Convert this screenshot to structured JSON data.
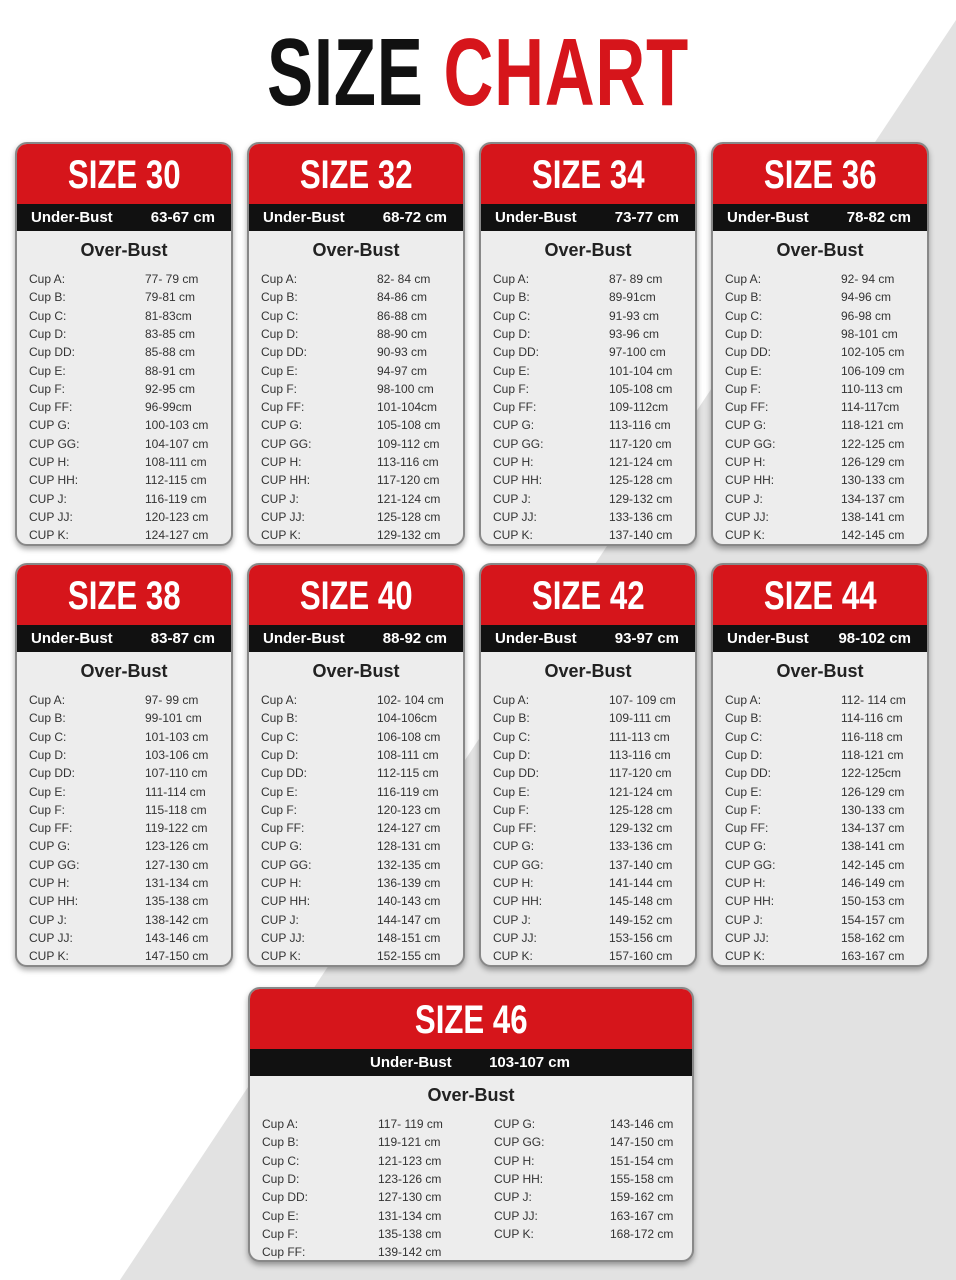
{
  "title": {
    "part1": "SIZE",
    "part2": "CHART"
  },
  "cards": [
    {
      "size": "SIZE 30",
      "under_bust_label": "Under-Bust",
      "under_bust": "63-67 cm",
      "over_bust_label": "Over-Bust",
      "rows": [
        [
          "Cup A:",
          "77- 79 cm"
        ],
        [
          "Cup B:",
          "79-81 cm"
        ],
        [
          "Cup C:",
          "81-83cm"
        ],
        [
          "Cup D:",
          "83-85 cm"
        ],
        [
          "Cup DD:",
          "85-88 cm"
        ],
        [
          "Cup E:",
          "88-91 cm"
        ],
        [
          "Cup F:",
          "92-95 cm"
        ],
        [
          "Cup FF:",
          "96-99cm"
        ],
        [
          "CUP G:",
          "100-103 cm"
        ],
        [
          "CUP GG:",
          "104-107 cm"
        ],
        [
          "CUP H:",
          "108-111 cm"
        ],
        [
          "CUP HH:",
          "112-115 cm"
        ],
        [
          "CUP J:",
          "116-119 cm"
        ],
        [
          "CUP JJ:",
          "120-123 cm"
        ],
        [
          "CUP K:",
          "124-127 cm"
        ]
      ]
    },
    {
      "size": "SIZE 32",
      "under_bust_label": "Under-Bust",
      "under_bust": "68-72 cm",
      "over_bust_label": "Over-Bust",
      "rows": [
        [
          "Cup A:",
          "82- 84 cm"
        ],
        [
          "Cup B:",
          "84-86 cm"
        ],
        [
          "Cup C:",
          "86-88 cm"
        ],
        [
          "Cup D:",
          "88-90 cm"
        ],
        [
          "Cup DD:",
          "90-93 cm"
        ],
        [
          "Cup E:",
          "94-97 cm"
        ],
        [
          "Cup F:",
          "98-100 cm"
        ],
        [
          "Cup FF:",
          "101-104cm"
        ],
        [
          "CUP G:",
          "105-108 cm"
        ],
        [
          "CUP GG:",
          "109-112 cm"
        ],
        [
          "CUP H:",
          "113-116 cm"
        ],
        [
          "CUP HH:",
          "117-120 cm"
        ],
        [
          "CUP J:",
          "121-124 cm"
        ],
        [
          "CUP JJ:",
          "125-128 cm"
        ],
        [
          "CUP K:",
          "129-132 cm"
        ]
      ]
    },
    {
      "size": "SIZE 34",
      "under_bust_label": "Under-Bust",
      "under_bust": "73-77 cm",
      "over_bust_label": "Over-Bust",
      "rows": [
        [
          "Cup A:",
          "87- 89 cm"
        ],
        [
          "Cup B:",
          "89-91cm"
        ],
        [
          "Cup C:",
          "91-93 cm"
        ],
        [
          "Cup D:",
          "93-96 cm"
        ],
        [
          "Cup DD:",
          "97-100 cm"
        ],
        [
          "Cup E:",
          "101-104 cm"
        ],
        [
          "Cup F:",
          "105-108 cm"
        ],
        [
          "Cup FF:",
          "109-112cm"
        ],
        [
          "CUP G:",
          "113-116 cm"
        ],
        [
          "CUP GG:",
          "117-120 cm"
        ],
        [
          "CUP H:",
          "121-124 cm"
        ],
        [
          "CUP HH:",
          "125-128 cm"
        ],
        [
          "CUP J:",
          "129-132 cm"
        ],
        [
          "CUP JJ:",
          "133-136 cm"
        ],
        [
          "CUP K:",
          "137-140 cm"
        ]
      ]
    },
    {
      "size": "SIZE 36",
      "under_bust_label": "Under-Bust",
      "under_bust": "78-82 cm",
      "over_bust_label": "Over-Bust",
      "rows": [
        [
          "Cup A:",
          "92- 94 cm"
        ],
        [
          "Cup B:",
          "94-96 cm"
        ],
        [
          "Cup C:",
          "96-98 cm"
        ],
        [
          "Cup D:",
          "98-101 cm"
        ],
        [
          "Cup DD:",
          "102-105 cm"
        ],
        [
          "Cup E:",
          "106-109 cm"
        ],
        [
          "Cup F:",
          "110-113 cm"
        ],
        [
          "Cup FF:",
          "114-117cm"
        ],
        [
          "CUP G:",
          "118-121 cm"
        ],
        [
          "CUP GG:",
          "122-125 cm"
        ],
        [
          "CUP H:",
          "126-129 cm"
        ],
        [
          "CUP HH:",
          "130-133 cm"
        ],
        [
          "CUP J:",
          "134-137 cm"
        ],
        [
          "CUP JJ:",
          "138-141 cm"
        ],
        [
          "CUP K:",
          "142-145 cm"
        ]
      ]
    },
    {
      "size": "SIZE 38",
      "under_bust_label": "Under-Bust",
      "under_bust": "83-87 cm",
      "over_bust_label": "Over-Bust",
      "rows": [
        [
          "Cup A:",
          "97- 99 cm"
        ],
        [
          "Cup B:",
          "99-101 cm"
        ],
        [
          "Cup C:",
          "101-103 cm"
        ],
        [
          "Cup D:",
          "103-106 cm"
        ],
        [
          "Cup DD:",
          "107-110 cm"
        ],
        [
          "Cup E:",
          "111-114 cm"
        ],
        [
          "Cup F:",
          "115-118 cm"
        ],
        [
          "Cup FF:",
          "119-122 cm"
        ],
        [
          "CUP G:",
          "123-126 cm"
        ],
        [
          "CUP GG:",
          "127-130 cm"
        ],
        [
          "CUP H:",
          "131-134 cm"
        ],
        [
          "CUP HH:",
          "135-138 cm"
        ],
        [
          "CUP J:",
          "138-142 cm"
        ],
        [
          "CUP JJ:",
          "143-146 cm"
        ],
        [
          "CUP K:",
          "147-150 cm"
        ]
      ]
    },
    {
      "size": "SIZE 40",
      "under_bust_label": "Under-Bust",
      "under_bust": "88-92 cm",
      "over_bust_label": "Over-Bust",
      "rows": [
        [
          "Cup A:",
          "102- 104 cm"
        ],
        [
          "Cup B:",
          "104-106cm"
        ],
        [
          "Cup C:",
          "106-108 cm"
        ],
        [
          "Cup D:",
          "108-111 cm"
        ],
        [
          "Cup DD:",
          "112-115 cm"
        ],
        [
          "Cup E:",
          "116-119 cm"
        ],
        [
          "Cup F:",
          "120-123 cm"
        ],
        [
          "Cup FF:",
          "124-127 cm"
        ],
        [
          "CUP G:",
          "128-131 cm"
        ],
        [
          "CUP GG:",
          "132-135 cm"
        ],
        [
          "CUP H:",
          "136-139 cm"
        ],
        [
          "CUP HH:",
          "140-143 cm"
        ],
        [
          "CUP J:",
          "144-147 cm"
        ],
        [
          "CUP JJ:",
          "148-151 cm"
        ],
        [
          "CUP K:",
          "152-155 cm"
        ]
      ]
    },
    {
      "size": "SIZE 42",
      "under_bust_label": "Under-Bust",
      "under_bust": "93-97 cm",
      "over_bust_label": "Over-Bust",
      "rows": [
        [
          "Cup A:",
          "107- 109 cm"
        ],
        [
          "Cup B:",
          "109-111 cm"
        ],
        [
          "Cup C:",
          "111-113 cm"
        ],
        [
          "Cup D:",
          "113-116 cm"
        ],
        [
          "Cup DD:",
          "117-120 cm"
        ],
        [
          "Cup E:",
          "121-124 cm"
        ],
        [
          "Cup F:",
          "125-128 cm"
        ],
        [
          "Cup FF:",
          "129-132 cm"
        ],
        [
          "CUP G:",
          "133-136 cm"
        ],
        [
          "CUP GG:",
          "137-140 cm"
        ],
        [
          "CUP H:",
          "141-144 cm"
        ],
        [
          "CUP HH:",
          "145-148 cm"
        ],
        [
          "CUP J:",
          "149-152 cm"
        ],
        [
          "CUP JJ:",
          "153-156 cm"
        ],
        [
          "CUP K:",
          "157-160 cm"
        ]
      ]
    },
    {
      "size": "SIZE 44",
      "under_bust_label": "Under-Bust",
      "under_bust": "98-102 cm",
      "over_bust_label": "Over-Bust",
      "rows": [
        [
          "Cup A:",
          "112- 114 cm"
        ],
        [
          "Cup B:",
          "114-116 cm"
        ],
        [
          "Cup C:",
          "116-118 cm"
        ],
        [
          "Cup D:",
          "118-121 cm"
        ],
        [
          "Cup DD:",
          "122-125cm"
        ],
        [
          "Cup E:",
          "126-129 cm"
        ],
        [
          "Cup F:",
          "130-133 cm"
        ],
        [
          "Cup FF:",
          "134-137 cm"
        ],
        [
          "CUP G:",
          "138-141 cm"
        ],
        [
          "CUP GG:",
          "142-145 cm"
        ],
        [
          "CUP H:",
          "146-149 cm"
        ],
        [
          "CUP HH:",
          "150-153 cm"
        ],
        [
          "CUP J:",
          "154-157 cm"
        ],
        [
          "CUP JJ:",
          "158-162 cm"
        ],
        [
          "CUP K:",
          "163-167 cm"
        ]
      ]
    },
    {
      "size": "SIZE 46",
      "under_bust_label": "Under-Bust",
      "under_bust": "103-107 cm",
      "over_bust_label": "Over-Bust",
      "rows": [
        [
          "Cup A:",
          "117- 119 cm"
        ],
        [
          "Cup B:",
          "119-121 cm"
        ],
        [
          "Cup C:",
          "121-123 cm"
        ],
        [
          "Cup D:",
          "123-126 cm"
        ],
        [
          "Cup DD:",
          "127-130 cm"
        ],
        [
          "Cup E:",
          "131-134 cm"
        ],
        [
          "Cup F:",
          "135-138 cm"
        ],
        [
          "Cup FF:",
          "139-142 cm"
        ],
        [
          "CUP G:",
          "143-146 cm"
        ],
        [
          "CUP GG:",
          "147-150 cm"
        ],
        [
          "CUP H:",
          "151-154 cm"
        ],
        [
          "CUP HH:",
          "155-158 cm"
        ],
        [
          "CUP J:",
          "159-162 cm"
        ],
        [
          "CUP JJ:",
          "163-167 cm"
        ],
        [
          "CUP K:",
          "168-172 cm"
        ]
      ]
    }
  ]
}
